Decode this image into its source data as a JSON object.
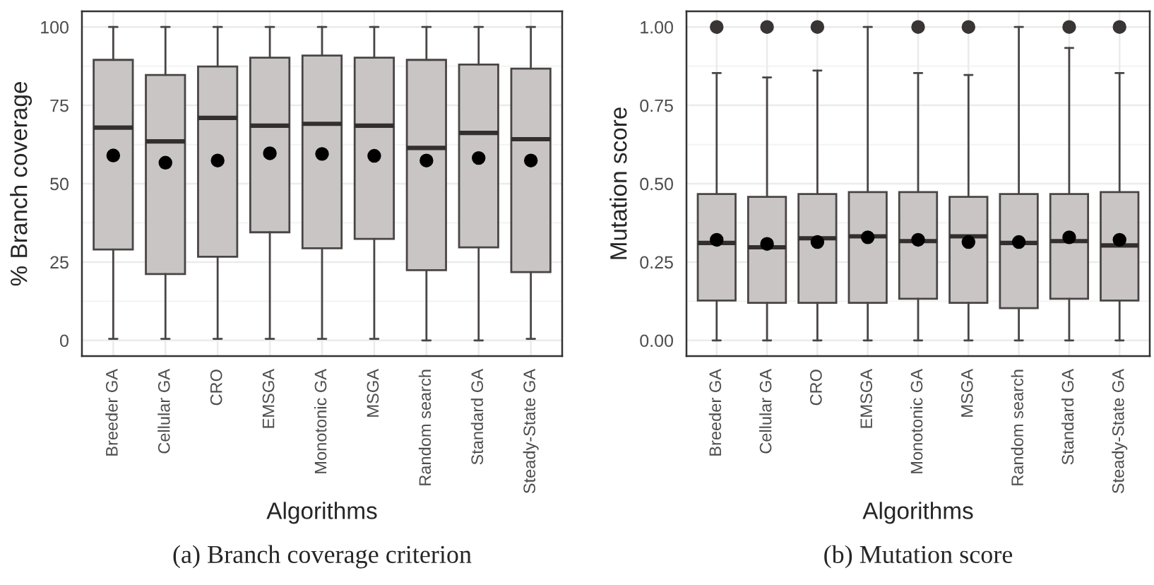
{
  "chart_data": [
    {
      "type": "box",
      "ylabel": "% Branch coverage",
      "xlabel": "Algorithms",
      "annotations": [
        "(a) Branch coverage criterion"
      ],
      "categories": [
        "Breeder GA",
        "Cellular GA",
        "CRO",
        "EMSGA",
        "Monotonic GA",
        "MSGA",
        "Random search",
        "Standard GA",
        "Steady-State GA"
      ],
      "ylim": [
        -5,
        105
      ],
      "yticks": [
        0,
        25,
        50,
        75,
        100
      ],
      "grid": true,
      "color": "#c9c5c4",
      "boxes": [
        {
          "low": 0.5,
          "q1": 29,
          "median": 67.9,
          "q3": 89.5,
          "high": 100,
          "mean": 59
        },
        {
          "low": 0.5,
          "q1": 21.2,
          "median": 63.5,
          "q3": 84.7,
          "high": 100,
          "mean": 56.7
        },
        {
          "low": 0.5,
          "q1": 26.7,
          "median": 71,
          "q3": 87.4,
          "high": 100,
          "mean": 57.4
        },
        {
          "low": 0.5,
          "q1": 34.5,
          "median": 68.5,
          "q3": 90.2,
          "high": 100,
          "mean": 59.7
        },
        {
          "low": 0.5,
          "q1": 29.4,
          "median": 69.1,
          "q3": 90.9,
          "high": 100,
          "mean": 59.5
        },
        {
          "low": 0.5,
          "q1": 32.4,
          "median": 68.5,
          "q3": 90.2,
          "high": 100,
          "mean": 58.9
        },
        {
          "low": 0,
          "q1": 22.4,
          "median": 61.4,
          "q3": 89.5,
          "high": 100,
          "mean": 57.4
        },
        {
          "low": 0,
          "q1": 29.7,
          "median": 66.2,
          "q3": 88,
          "high": 100,
          "mean": 58.2
        },
        {
          "low": 0.5,
          "q1": 21.8,
          "median": 64.2,
          "q3": 86.7,
          "high": 100,
          "mean": 57.4
        }
      ]
    },
    {
      "type": "box",
      "ylabel": "Mutation score",
      "xlabel": "Algorithms",
      "annotations": [
        "(b) Mutation score"
      ],
      "categories": [
        "Breeder GA",
        "Cellular GA",
        "CRO",
        "EMSGA",
        "Monotonic GA",
        "MSGA",
        "Random search",
        "Standard GA",
        "Steady-State GA"
      ],
      "ylim": [
        -0.05,
        1.05
      ],
      "yticks": [
        {
          "value": 0,
          "label": "0.00"
        },
        {
          "value": 0.25,
          "label": "0.25"
        },
        {
          "value": 0.5,
          "label": "0.50"
        },
        {
          "value": 0.75,
          "label": "0.75"
        },
        {
          "value": 1,
          "label": "1.00"
        }
      ],
      "grid": true,
      "color": "#c9c5c4",
      "boxes": [
        {
          "low": 0,
          "q1": 0.127,
          "median": 0.311,
          "q3": 0.467,
          "high": 0.853,
          "mean": 0.321,
          "outliers": [
            1
          ]
        },
        {
          "low": 0,
          "q1": 0.12,
          "median": 0.297,
          "q3": 0.458,
          "high": 0.839,
          "mean": 0.308,
          "outliers": [
            1
          ]
        },
        {
          "low": 0,
          "q1": 0.12,
          "median": 0.326,
          "q3": 0.467,
          "high": 0.861,
          "mean": 0.314,
          "outliers": [
            1
          ]
        },
        {
          "low": 0,
          "q1": 0.12,
          "median": 0.332,
          "q3": 0.473,
          "high": 1,
          "mean": 0.329
        },
        {
          "low": 0,
          "q1": 0.133,
          "median": 0.317,
          "q3": 0.473,
          "high": 0.853,
          "mean": 0.321,
          "outliers": [
            1
          ]
        },
        {
          "low": 0,
          "q1": 0.12,
          "median": 0.332,
          "q3": 0.458,
          "high": 0.847,
          "mean": 0.314,
          "outliers": [
            1
          ]
        },
        {
          "low": 0,
          "q1": 0.103,
          "median": 0.311,
          "q3": 0.467,
          "high": 1,
          "mean": 0.314
        },
        {
          "low": 0,
          "q1": 0.133,
          "median": 0.317,
          "q3": 0.467,
          "high": 0.933,
          "mean": 0.329,
          "outliers": [
            1
          ]
        },
        {
          "low": 0,
          "q1": 0.127,
          "median": 0.303,
          "q3": 0.473,
          "high": 0.853,
          "mean": 0.321,
          "outliers": [
            1
          ]
        }
      ]
    }
  ]
}
